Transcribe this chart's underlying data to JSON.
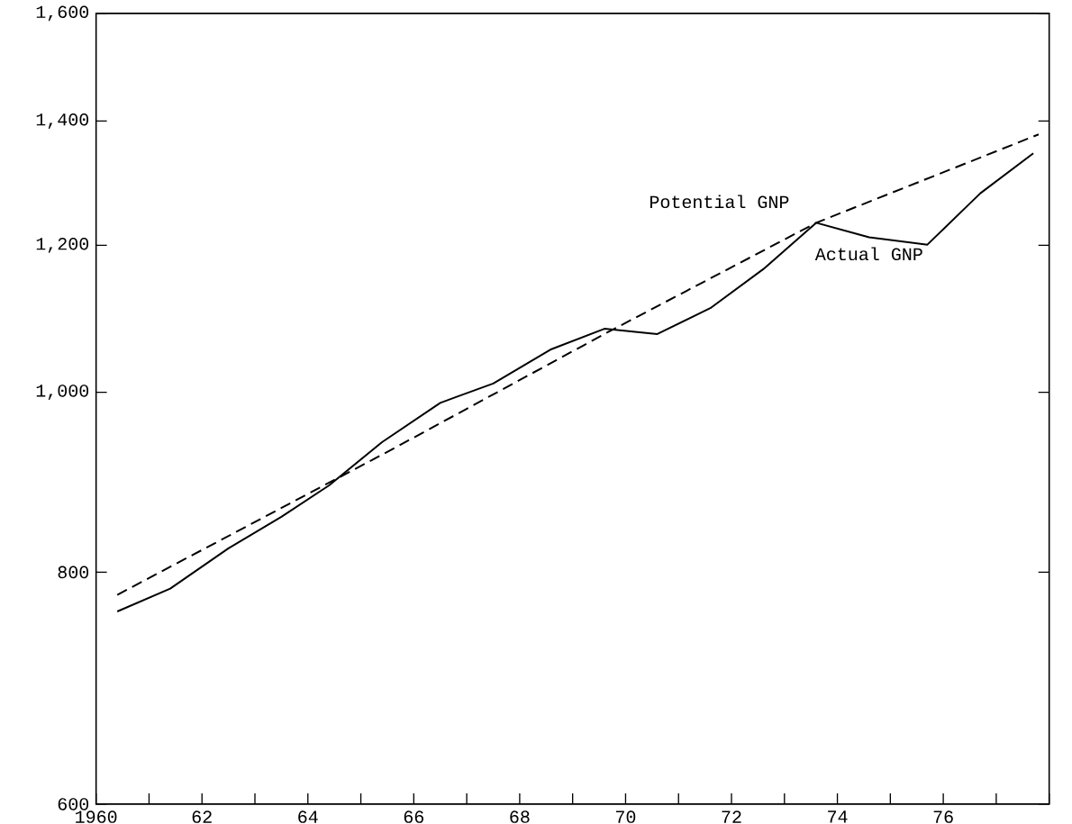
{
  "chart_data": {
    "type": "line",
    "xlim": [
      1960,
      1978
    ],
    "xticks": [
      {
        "value": 1960,
        "label": "1960"
      },
      {
        "value": 1961,
        "label": null
      },
      {
        "value": 1962,
        "label": "62"
      },
      {
        "value": 1963,
        "label": null
      },
      {
        "value": 1964,
        "label": "64"
      },
      {
        "value": 1965,
        "label": null
      },
      {
        "value": 1966,
        "label": "66"
      },
      {
        "value": 1967,
        "label": null
      },
      {
        "value": 1968,
        "label": "68"
      },
      {
        "value": 1969,
        "label": null
      },
      {
        "value": 1970,
        "label": "70"
      },
      {
        "value": 1971,
        "label": null
      },
      {
        "value": 1972,
        "label": "72"
      },
      {
        "value": 1973,
        "label": null
      },
      {
        "value": 1974,
        "label": "74"
      },
      {
        "value": 1975,
        "label": null
      },
      {
        "value": 1976,
        "label": "76"
      },
      {
        "value": 1977,
        "label": null
      },
      {
        "value": 1978,
        "label": null
      }
    ],
    "ylim": [
      600,
      1600
    ],
    "yticks": [
      {
        "value": 600,
        "label": "600"
      },
      {
        "value": 800,
        "label": "800"
      },
      {
        "value": 1000,
        "label": "1,000"
      },
      {
        "value": 1200,
        "label": "1,200"
      },
      {
        "value": 1400,
        "label": "1,400"
      },
      {
        "value": 1600,
        "label": "1,600"
      }
    ],
    "log": "y",
    "grid": false,
    "marker": "none",
    "series": [
      {
        "name": "Potential GNP",
        "color": "#000000",
        "line_style": "dashed",
        "x": [
          1960.4,
          1965.6,
          1969.6,
          1973.6,
          1977.8
        ],
        "values": [
          778,
          932,
          1075,
          1234,
          1377
        ]
      },
      {
        "name": "Actual GNP",
        "color": "#000000",
        "line_style": "solid",
        "x": [
          1960.4,
          1961.4,
          1962.5,
          1963.5,
          1964.4,
          1965.4,
          1966.5,
          1967.5,
          1968.6,
          1969.6,
          1970.6,
          1971.6,
          1972.6,
          1973.6,
          1974.6,
          1975.7,
          1976.7,
          1977.7
        ],
        "values": [
          762,
          784,
          824,
          857,
          891,
          940,
          987,
          1011,
          1055,
          1082,
          1075,
          1110,
          1165,
          1234,
          1212,
          1201,
          1280,
          1345
        ]
      }
    ]
  }
}
